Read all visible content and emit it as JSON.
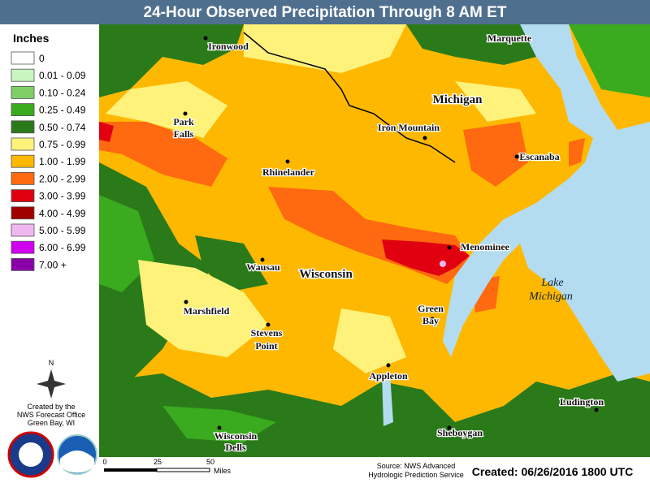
{
  "header": {
    "title": "24-Hour Observed Precipitation Through 8 AM ET"
  },
  "legend": {
    "title": "Inches",
    "items": [
      {
        "label": "0",
        "color": "#ffffff"
      },
      {
        "label": "0.01 - 0.09",
        "color": "#c8f5c0"
      },
      {
        "label": "0.10 - 0.24",
        "color": "#7fcf66"
      },
      {
        "label": "0.25 - 0.49",
        "color": "#3aaa1e"
      },
      {
        "label": "0.50 - 0.74",
        "color": "#2a7a1a"
      },
      {
        "label": "0.75 - 0.99",
        "color": "#fff27a"
      },
      {
        "label": "1.00 - 1.99",
        "color": "#ffb800"
      },
      {
        "label": "2.00 - 2.99",
        "color": "#ff6a10"
      },
      {
        "label": "3.00 - 3.99",
        "color": "#e00010"
      },
      {
        "label": "4.00 - 4.99",
        "color": "#a00000"
      },
      {
        "label": "5.00 - 5.99",
        "color": "#f0b8f0"
      },
      {
        "label": "6.00 - 6.99",
        "color": "#d000f0"
      },
      {
        "label": "7.00 +",
        "color": "#8a00a8"
      }
    ]
  },
  "map": {
    "states": [
      "Michigan",
      "Wisconsin"
    ],
    "lake": [
      "Lake",
      "Michigan"
    ],
    "cities": [
      [
        "Ironwood"
      ],
      [
        "Marquette"
      ],
      [
        "Park",
        "Falls"
      ],
      [
        "Iron Mountain"
      ],
      [
        "Rhinelander"
      ],
      [
        "Escanaba"
      ],
      [
        "Menominee"
      ],
      [
        "Wausau"
      ],
      [
        "Marshfield"
      ],
      [
        "Green",
        "Bay"
      ],
      [
        "Stevens",
        "Point"
      ],
      [
        "Appleton"
      ],
      [
        "Ludington"
      ],
      [
        "Sheboygan"
      ],
      [
        "Wisconsin",
        "Dells"
      ]
    ]
  },
  "compass": "N",
  "credit": [
    "Created by the",
    "NWS Forecast Office",
    "Green Bay, WI"
  ],
  "scale": {
    "ticks": [
      "0",
      "25",
      "50"
    ],
    "unit": "Miles"
  },
  "source": [
    "Source: NWS Advanced",
    "Hydrologic Prediction Service"
  ],
  "created": "Created: 06/26/2016 1800 UTC"
}
